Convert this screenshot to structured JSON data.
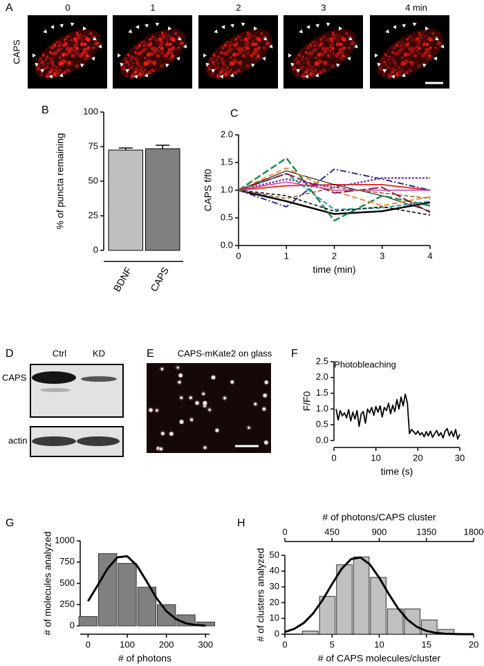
{
  "panel_labels": [
    "A",
    "B",
    "C",
    "D",
    "E",
    "F",
    "G",
    "H"
  ],
  "panel_a": {
    "row_label": "CAPS",
    "time_labels": [
      "0",
      "1",
      "2",
      "3",
      "4 min"
    ]
  },
  "panel_d": {
    "lanes": [
      "Ctrl",
      "KD"
    ],
    "rows": [
      "CAPS",
      "actin"
    ]
  },
  "panel_e": {
    "title": "CAPS-mKate2 on glass"
  },
  "chart_data": [
    {
      "type": "bar",
      "ylabel": "% of puncta remaining",
      "categories": [
        "BDNF",
        "CAPS"
      ],
      "values": [
        72.5,
        73.5
      ],
      "errors": [
        1.5,
        2.5
      ],
      "colors": [
        "#bfbfbf",
        "#808080"
      ],
      "ylim": [
        0,
        100
      ],
      "yticks": [
        0,
        25,
        50,
        75,
        100
      ]
    },
    {
      "type": "line",
      "ylabel": "CAPS f/f0",
      "xlabel": "time (min)",
      "x": [
        0,
        1,
        2,
        3,
        4
      ],
      "xlim": [
        0,
        4
      ],
      "xticks": [
        0,
        1,
        2,
        3,
        4
      ],
      "ylim": [
        0,
        2
      ],
      "yticks": [
        {
          "value": 0,
          "label": "0.0"
        },
        0.5,
        {
          "value": 1,
          "label": "1.0"
        },
        1.5,
        {
          "value": 2,
          "label": "2.0"
        }
      ],
      "series": [
        {
          "color": "#e8312f",
          "dash": "none",
          "width": 2,
          "values": [
            1.0,
            1.08,
            1.1,
            1.1,
            1.0
          ]
        },
        {
          "color": "#000000",
          "dash": "none",
          "width": 2.5,
          "values": [
            1.0,
            0.8,
            0.57,
            0.62,
            0.78
          ]
        },
        {
          "color": "#000000",
          "dash": "none",
          "width": 1,
          "values": [
            1.0,
            1.35,
            1.1,
            0.9,
            0.62
          ]
        },
        {
          "color": "#2b2b8c",
          "dash": "9 3 2 3",
          "width": 2,
          "values": [
            1.0,
            0.7,
            1.38,
            1.2,
            1.0
          ]
        },
        {
          "color": "#1f8a4c",
          "dash": "10 4",
          "width": 2.5,
          "values": [
            1.0,
            1.58,
            0.45,
            0.9,
            0.72
          ]
        },
        {
          "color": "#f08a30",
          "dash": "8 4",
          "width": 2,
          "values": [
            1.0,
            1.4,
            0.98,
            0.72,
            0.88
          ]
        },
        {
          "color": "#7b3fa0",
          "dash": "3 2",
          "width": 2.5,
          "values": [
            1.0,
            1.2,
            1.05,
            1.22,
            1.22
          ]
        },
        {
          "color": "#1f9a9a",
          "dash": "7 3",
          "width": 2,
          "values": [
            1.0,
            1.3,
            0.65,
            0.68,
            0.8
          ]
        },
        {
          "color": "#000000",
          "dash": "5 3",
          "width": 1.5,
          "values": [
            1.0,
            0.9,
            0.62,
            0.7,
            0.55
          ]
        },
        {
          "color": "#8b1a3a",
          "dash": "14 4",
          "width": 2,
          "values": [
            1.0,
            1.3,
            0.95,
            1.05,
            0.6
          ]
        },
        {
          "color": "#d63aa5",
          "dash": "none",
          "width": 1.5,
          "values": [
            1.0,
            1.15,
            1.0,
            1.0,
            1.0
          ]
        },
        {
          "color": "#8b5a2b",
          "dash": "6 3",
          "width": 1.5,
          "values": [
            1.0,
            0.85,
            1.05,
            0.95,
            0.85
          ]
        }
      ]
    },
    {
      "type": "line",
      "title": "Photobleaching",
      "ylabel": "F/F0",
      "xlabel": "time (s)",
      "color": "#000000",
      "x": [
        0.5,
        1,
        1.5,
        2,
        2.5,
        3,
        3.5,
        4,
        4.5,
        5,
        5.5,
        6,
        6.5,
        7,
        7.5,
        8,
        8.5,
        9,
        9.5,
        10,
        10.5,
        11,
        11.5,
        12,
        12.5,
        13,
        13.5,
        14,
        14.5,
        15,
        15.5,
        16,
        16.5,
        17,
        17.5,
        18,
        18.5,
        19,
        19.5,
        20,
        20.5,
        21,
        21.5,
        22,
        22.5,
        23,
        23.5,
        24,
        24.5,
        25,
        25.5,
        26,
        26.5,
        27,
        27.5,
        28,
        28.5,
        29,
        29.5,
        30
      ],
      "values": [
        1.0,
        0.65,
        0.95,
        0.78,
        0.88,
        0.72,
        0.98,
        0.62,
        0.9,
        0.68,
        0.95,
        0.45,
        0.85,
        0.92,
        0.55,
        1.0,
        0.88,
        1.05,
        0.8,
        1.08,
        0.9,
        1.1,
        0.75,
        1.05,
        0.95,
        1.18,
        0.85,
        1.12,
        0.92,
        1.3,
        1.0,
        1.38,
        1.1,
        1.47,
        1.2,
        0.22,
        0.35,
        0.28,
        0.2,
        0.3,
        0.18,
        0.25,
        0.12,
        0.28,
        0.15,
        0.3,
        0.1,
        0.22,
        0.32,
        0.15,
        0.25,
        0.08,
        0.3,
        0.38,
        0.15,
        0.3,
        0.12,
        0.35,
        0.05,
        0.2
      ],
      "xlim": [
        0,
        30
      ],
      "xticks": [
        0,
        10,
        20,
        30
      ],
      "ylim": [
        0,
        2.5
      ],
      "yticks": [
        {
          "value": 0,
          "label": "0.0"
        },
        0.5,
        {
          "value": 1,
          "label": "1.0"
        },
        1.5,
        {
          "value": 2,
          "label": "2.0"
        },
        2.5
      ]
    },
    {
      "type": "histogram",
      "ylabel": "# of molecules analyzed",
      "xlabel": "# of photons",
      "color": "#808080",
      "bins": [
        -25,
        25,
        75,
        125,
        175,
        225,
        275,
        325
      ],
      "values": [
        110,
        850,
        735,
        455,
        250,
        130,
        45
      ],
      "fit": {
        "x": [
          0,
          25,
          50,
          75,
          100,
          125,
          150,
          175,
          200,
          225,
          250,
          275,
          300
        ],
        "values": [
          290,
          480,
          675,
          806,
          819,
          708,
          520,
          325,
          173,
          78,
          30,
          10,
          3
        ]
      },
      "xlim": [
        -20,
        310
      ],
      "xticks": [
        0,
        100,
        200,
        300
      ],
      "ylim": [
        0,
        1000
      ],
      "yticks": [
        0,
        250,
        500,
        750,
        1000
      ]
    },
    {
      "type": "histogram",
      "ylabel": "# of clusters analyzed",
      "xlabel": "# of CAPS molecules/cluster",
      "x2label": "# of photons/CAPS cluster",
      "color": "#c0c0c0",
      "bins": [
        1.8,
        3.6,
        5.4,
        7.2,
        9.0,
        10.8,
        12.6,
        14.4,
        16.2,
        18.0
      ],
      "values": [
        2,
        24,
        44,
        49,
        36,
        16,
        16,
        9,
        3
      ],
      "fit": {
        "x": [
          0,
          1,
          2,
          3,
          4,
          5,
          6,
          7,
          8,
          9,
          10,
          11,
          12,
          13,
          14,
          15,
          16,
          17,
          18,
          19,
          20
        ],
        "values": [
          1.4,
          3.4,
          7.1,
          13.2,
          21.7,
          31.8,
          41.3,
          47.6,
          48.7,
          44.3,
          35.8,
          25.6,
          16.3,
          9.2,
          4.6,
          2.1,
          0.8,
          0.3,
          0.1,
          0,
          0
        ]
      },
      "xlim": [
        0,
        20
      ],
      "xticks": [
        0,
        5,
        10,
        15,
        20
      ],
      "x2lim": [
        0,
        1800
      ],
      "x2ticks": [
        0,
        450,
        900,
        1350,
        1800
      ],
      "ylim": [
        0,
        50
      ],
      "yticks": [
        0,
        10,
        20,
        30,
        40,
        50
      ]
    }
  ]
}
